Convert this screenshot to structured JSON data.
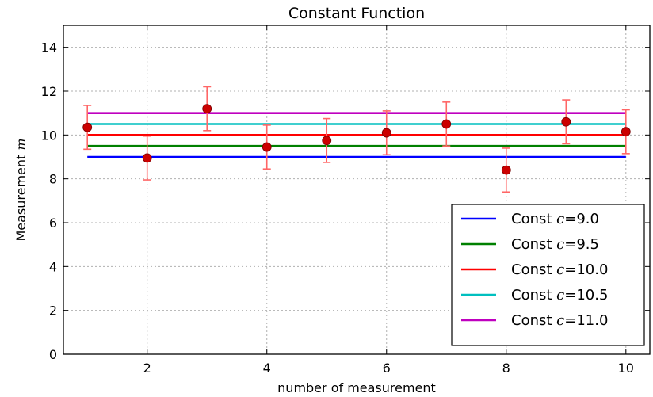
{
  "chart_data": {
    "type": "scatter",
    "title": "Constant Function",
    "xlabel": "number of measurement",
    "ylabel_prefix": "Measurement ",
    "ylabel_var": "m",
    "xlim": [
      0.6,
      10.4
    ],
    "ylim": [
      0,
      15
    ],
    "xticks": [
      2,
      4,
      6,
      8,
      10
    ],
    "yticks": [
      0,
      2,
      4,
      6,
      8,
      10,
      12,
      14
    ],
    "grid": true,
    "legend_position": "bottom-right",
    "measurements": {
      "x": [
        1,
        2,
        3,
        4,
        5,
        6,
        7,
        8,
        9,
        10
      ],
      "y": [
        10.35,
        8.95,
        11.2,
        9.45,
        9.75,
        10.1,
        10.5,
        8.4,
        10.6,
        10.15
      ],
      "yerr": 1.0,
      "marker_color": "#cc0000",
      "errorbar_color": "#ff6666"
    },
    "series": [
      {
        "prefix": "Const ",
        "var": "c",
        "suffix": "=9.0",
        "value": 9.0,
        "color": "#0000ff"
      },
      {
        "prefix": "Const ",
        "var": "c",
        "suffix": "=9.5",
        "value": 9.5,
        "color": "#008000"
      },
      {
        "prefix": "Const ",
        "var": "c",
        "suffix": "=10.0",
        "value": 10.0,
        "color": "#ff0000"
      },
      {
        "prefix": "Const ",
        "var": "c",
        "suffix": "=10.5",
        "value": 10.5,
        "color": "#00bfbf"
      },
      {
        "prefix": "Const ",
        "var": "c",
        "suffix": "=11.0",
        "value": 11.0,
        "color": "#bf00bf"
      }
    ]
  }
}
